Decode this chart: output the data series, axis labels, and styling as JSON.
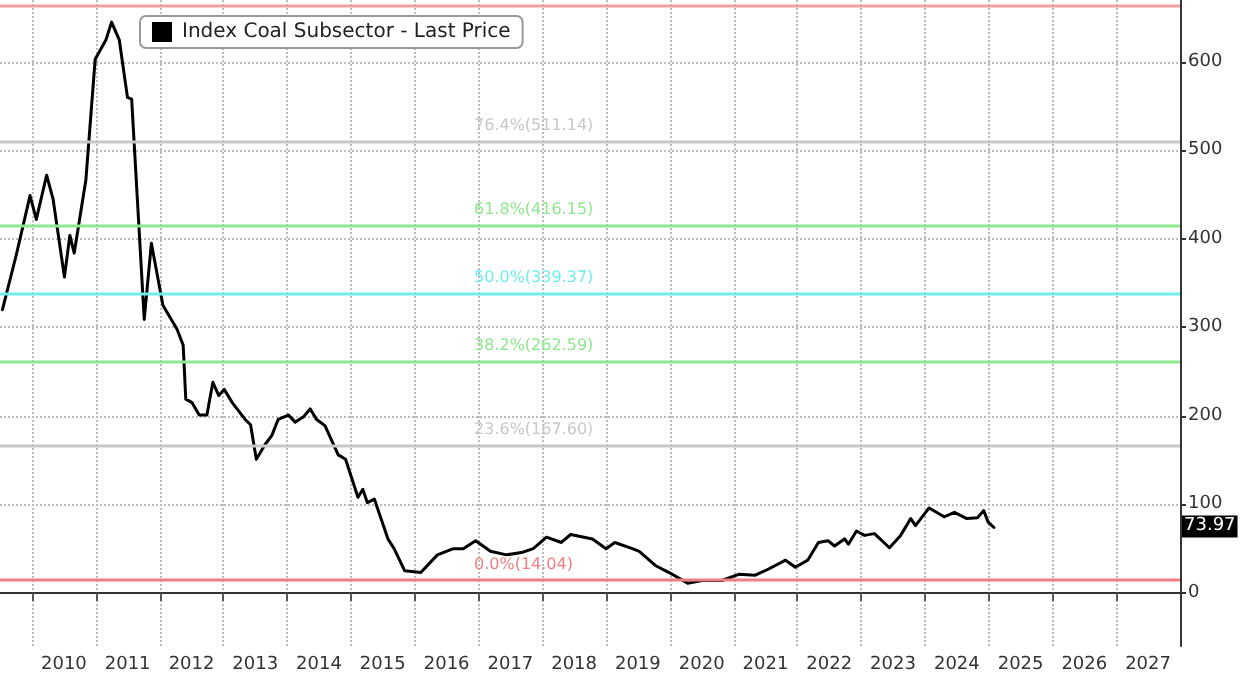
{
  "chart_data": {
    "type": "line",
    "x": [
      "2009-07-15",
      "2009-10-01",
      "2009-12-20",
      "2010-01-25",
      "2010-03-25",
      "2010-05-01",
      "2010-07-05",
      "2010-08-05",
      "2010-08-30",
      "2010-11-05",
      "2010-12-28",
      "2011-02-28",
      "2011-04-01",
      "2011-05-15",
      "2011-07-01",
      "2011-07-25",
      "2011-10-05",
      "2011-11-15",
      "2012-01-20",
      "2012-04-10",
      "2012-05-15",
      "2012-05-30",
      "2012-07-05",
      "2012-08-15",
      "2012-09-28",
      "2012-11-01",
      "2012-12-05",
      "2013-01-05",
      "2013-02-20",
      "2013-05-05",
      "2013-06-05",
      "2013-07-08",
      "2013-08-28",
      "2013-10-05",
      "2013-11-10",
      "2014-01-08",
      "2014-02-15",
      "2014-04-05",
      "2014-05-12",
      "2014-06-18",
      "2014-08-05",
      "2014-10-20",
      "2014-12-01",
      "2015-02-10",
      "2015-03-10",
      "2015-04-05",
      "2015-05-15",
      "2015-08-01",
      "2015-09-05",
      "2015-11-05",
      "2016-02-05",
      "2016-05-10",
      "2016-08-10",
      "2016-10-05",
      "2016-12-15",
      "2017-03-10",
      "2017-06-10",
      "2017-09-12",
      "2017-11-10",
      "2018-01-25",
      "2018-04-20",
      "2018-06-12",
      "2018-10-15",
      "2019-01-01",
      "2019-02-20",
      "2019-06-01",
      "2019-07-10",
      "2019-10-10",
      "2019-12-28",
      "2020-04-12",
      "2020-07-05",
      "2020-10-25",
      "2021-01-30",
      "2021-05-05",
      "2021-07-20",
      "2021-10-25",
      "2021-12-20",
      "2022-03-01",
      "2022-05-01",
      "2022-06-25",
      "2022-08-01",
      "2022-09-28",
      "2022-10-20",
      "2022-12-05",
      "2023-01-20",
      "2023-03-18",
      "2023-06-12",
      "2023-08-15",
      "2023-10-12",
      "2023-11-08",
      "2024-01-25",
      "2024-04-20",
      "2024-06-18",
      "2024-08-28",
      "2024-10-28",
      "2024-12-03",
      "2024-12-28",
      "2025-01-30"
    ],
    "series": [
      {
        "name": "Index Coal Subsector - Last Price",
        "color": "#000000",
        "values": [
          320,
          381,
          449,
          422,
          472,
          445,
          357,
          404,
          384,
          467,
          603,
          625,
          645,
          625,
          560,
          558,
          309,
          395,
          325,
          298,
          280,
          219,
          215,
          201,
          201,
          238,
          223,
          230,
          215,
          196,
          190,
          151,
          168,
          178,
          196,
          201,
          193,
          199,
          208,
          196,
          189,
          156,
          151,
          108,
          117,
          102,
          106,
          61,
          50,
          25,
          23,
          43,
          50,
          50,
          59,
          47,
          43,
          46,
          50,
          63,
          57,
          66,
          61,
          50,
          57,
          50,
          47,
          31,
          23,
          11,
          14,
          14,
          21,
          20,
          27,
          37,
          29,
          37,
          57,
          59,
          53,
          61,
          55,
          70,
          65,
          67,
          51,
          65,
          84,
          76,
          96,
          86,
          91,
          84,
          85,
          93,
          80,
          73.97
        ]
      }
    ],
    "xlim": [
      "2009-07-01",
      "2028-01-01"
    ],
    "xticks": [
      {
        "value": "2010-01-01",
        "label": null
      },
      {
        "value": "2010-07-02",
        "label": "2010"
      },
      {
        "value": "2011-01-01",
        "label": null
      },
      {
        "value": "2011-07-02",
        "label": "2011"
      },
      {
        "value": "2012-01-01",
        "label": null
      },
      {
        "value": "2012-07-02",
        "label": "2012"
      },
      {
        "value": "2013-01-01",
        "label": null
      },
      {
        "value": "2013-07-02",
        "label": "2013"
      },
      {
        "value": "2014-01-01",
        "label": null
      },
      {
        "value": "2014-07-02",
        "label": "2014"
      },
      {
        "value": "2015-01-01",
        "label": null
      },
      {
        "value": "2015-07-02",
        "label": "2015"
      },
      {
        "value": "2016-01-01",
        "label": null
      },
      {
        "value": "2016-07-02",
        "label": "2016"
      },
      {
        "value": "2017-01-01",
        "label": null
      },
      {
        "value": "2017-07-02",
        "label": "2017"
      },
      {
        "value": "2018-01-01",
        "label": null
      },
      {
        "value": "2018-07-02",
        "label": "2018"
      },
      {
        "value": "2019-01-01",
        "label": null
      },
      {
        "value": "2019-07-02",
        "label": "2019"
      },
      {
        "value": "2020-01-01",
        "label": null
      },
      {
        "value": "2020-07-02",
        "label": "2020"
      },
      {
        "value": "2021-01-01",
        "label": null
      },
      {
        "value": "2021-07-02",
        "label": "2021"
      },
      {
        "value": "2022-01-01",
        "label": null
      },
      {
        "value": "2022-07-02",
        "label": "2022"
      },
      {
        "value": "2023-01-01",
        "label": null
      },
      {
        "value": "2023-07-02",
        "label": "2023"
      },
      {
        "value": "2024-01-01",
        "label": null
      },
      {
        "value": "2024-07-02",
        "label": "2024"
      },
      {
        "value": "2025-01-01",
        "label": null
      },
      {
        "value": "2025-07-02",
        "label": "2025"
      },
      {
        "value": "2026-01-01",
        "label": null
      },
      {
        "value": "2026-07-02",
        "label": "2026"
      },
      {
        "value": "2027-01-01",
        "label": null
      },
      {
        "value": "2027-07-02",
        "label": "2027"
      }
    ],
    "ylim": [
      -60,
      670
    ],
    "yticks": [
      0,
      100,
      200,
      300,
      400,
      500,
      600
    ],
    "grid": true,
    "legend": "top left",
    "marker": "none",
    "line_style": "solid",
    "ref_lines": [
      {
        "axis": "y",
        "value": 664.7,
        "label": null,
        "color": "#f4a0a0"
      },
      {
        "axis": "y",
        "value": 511.14,
        "label": "76.4%(511.14)",
        "color": "#c8c8c8"
      },
      {
        "axis": "y",
        "value": 416.15,
        "label": "61.8%(416.15)",
        "color": "#8ee88e"
      },
      {
        "axis": "y",
        "value": 339.37,
        "label": "50.0%(339.37)",
        "color": "#70eeee"
      },
      {
        "axis": "y",
        "value": 262.59,
        "label": "38.2%(262.59)",
        "color": "#8ee88e"
      },
      {
        "axis": "y",
        "value": 167.6,
        "label": "23.6%(167.60)",
        "color": "#c8c8c8"
      },
      {
        "axis": "y",
        "value": 14.04,
        "label": "0.0%(14.04)",
        "color": "#f08080"
      }
    ],
    "annotations": [
      {
        "text": "73.97",
        "y": 73.97
      }
    ]
  }
}
